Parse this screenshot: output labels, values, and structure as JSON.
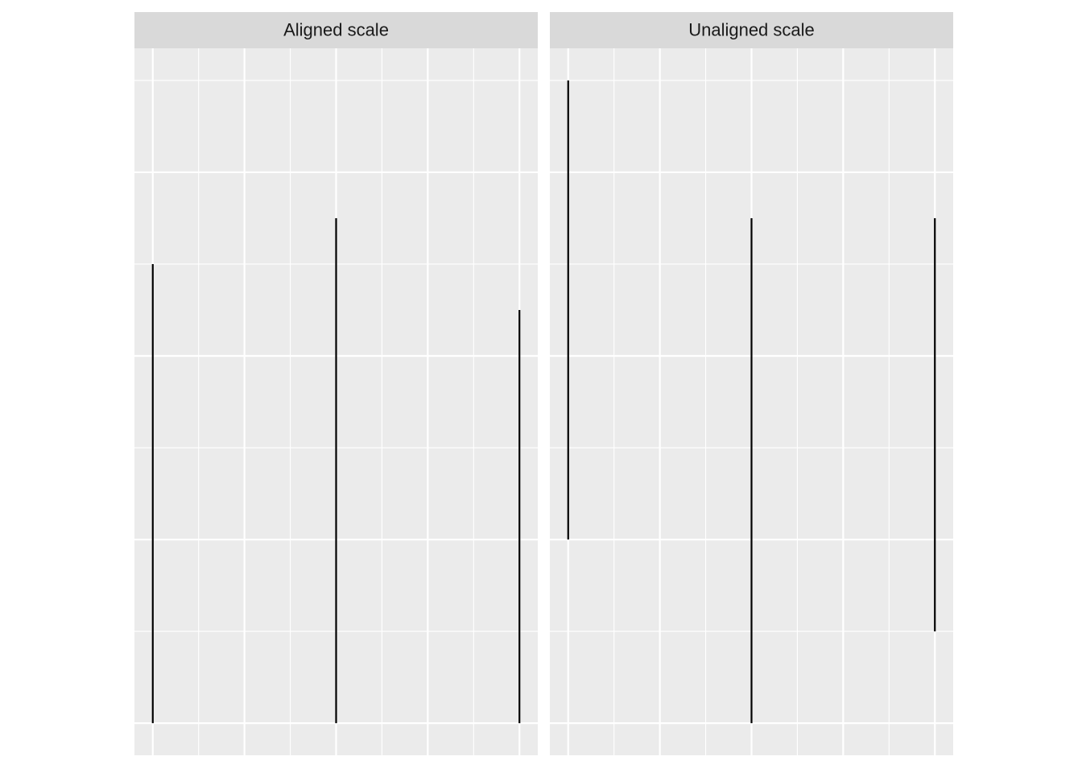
{
  "chart_data": [
    {
      "type": "segment",
      "title": "Aligned scale",
      "x": [
        0,
        2,
        4
      ],
      "y0": [
        0,
        0,
        0
      ],
      "y1": [
        2.5,
        2.75,
        2.25
      ],
      "color": "#000000",
      "xlim": [
        -0.2,
        4.2
      ],
      "ylim": [
        -0.175,
        3.675
      ],
      "xticks": [
        0,
        1,
        2,
        3,
        4
      ],
      "yticks": [
        0,
        1,
        2,
        3
      ],
      "xminor": [
        0.5,
        1.5,
        2.5,
        3.5
      ],
      "yminor": [
        0.5,
        1.5,
        2.5,
        3.5
      ],
      "grid": true
    },
    {
      "type": "segment",
      "title": "Unaligned scale",
      "x": [
        0,
        2,
        4
      ],
      "y0": [
        1,
        0,
        0.5
      ],
      "y1": [
        3.5,
        2.75,
        2.75
      ],
      "color": "#000000",
      "xlim": [
        -0.2,
        4.2
      ],
      "ylim": [
        -0.175,
        3.675
      ],
      "xticks": [
        0,
        1,
        2,
        3,
        4
      ],
      "yticks": [
        0,
        1,
        2,
        3
      ],
      "xminor": [
        0.5,
        1.5,
        2.5,
        3.5
      ],
      "yminor": [
        0.5,
        1.5,
        2.5,
        3.5
      ],
      "grid": true
    }
  ]
}
